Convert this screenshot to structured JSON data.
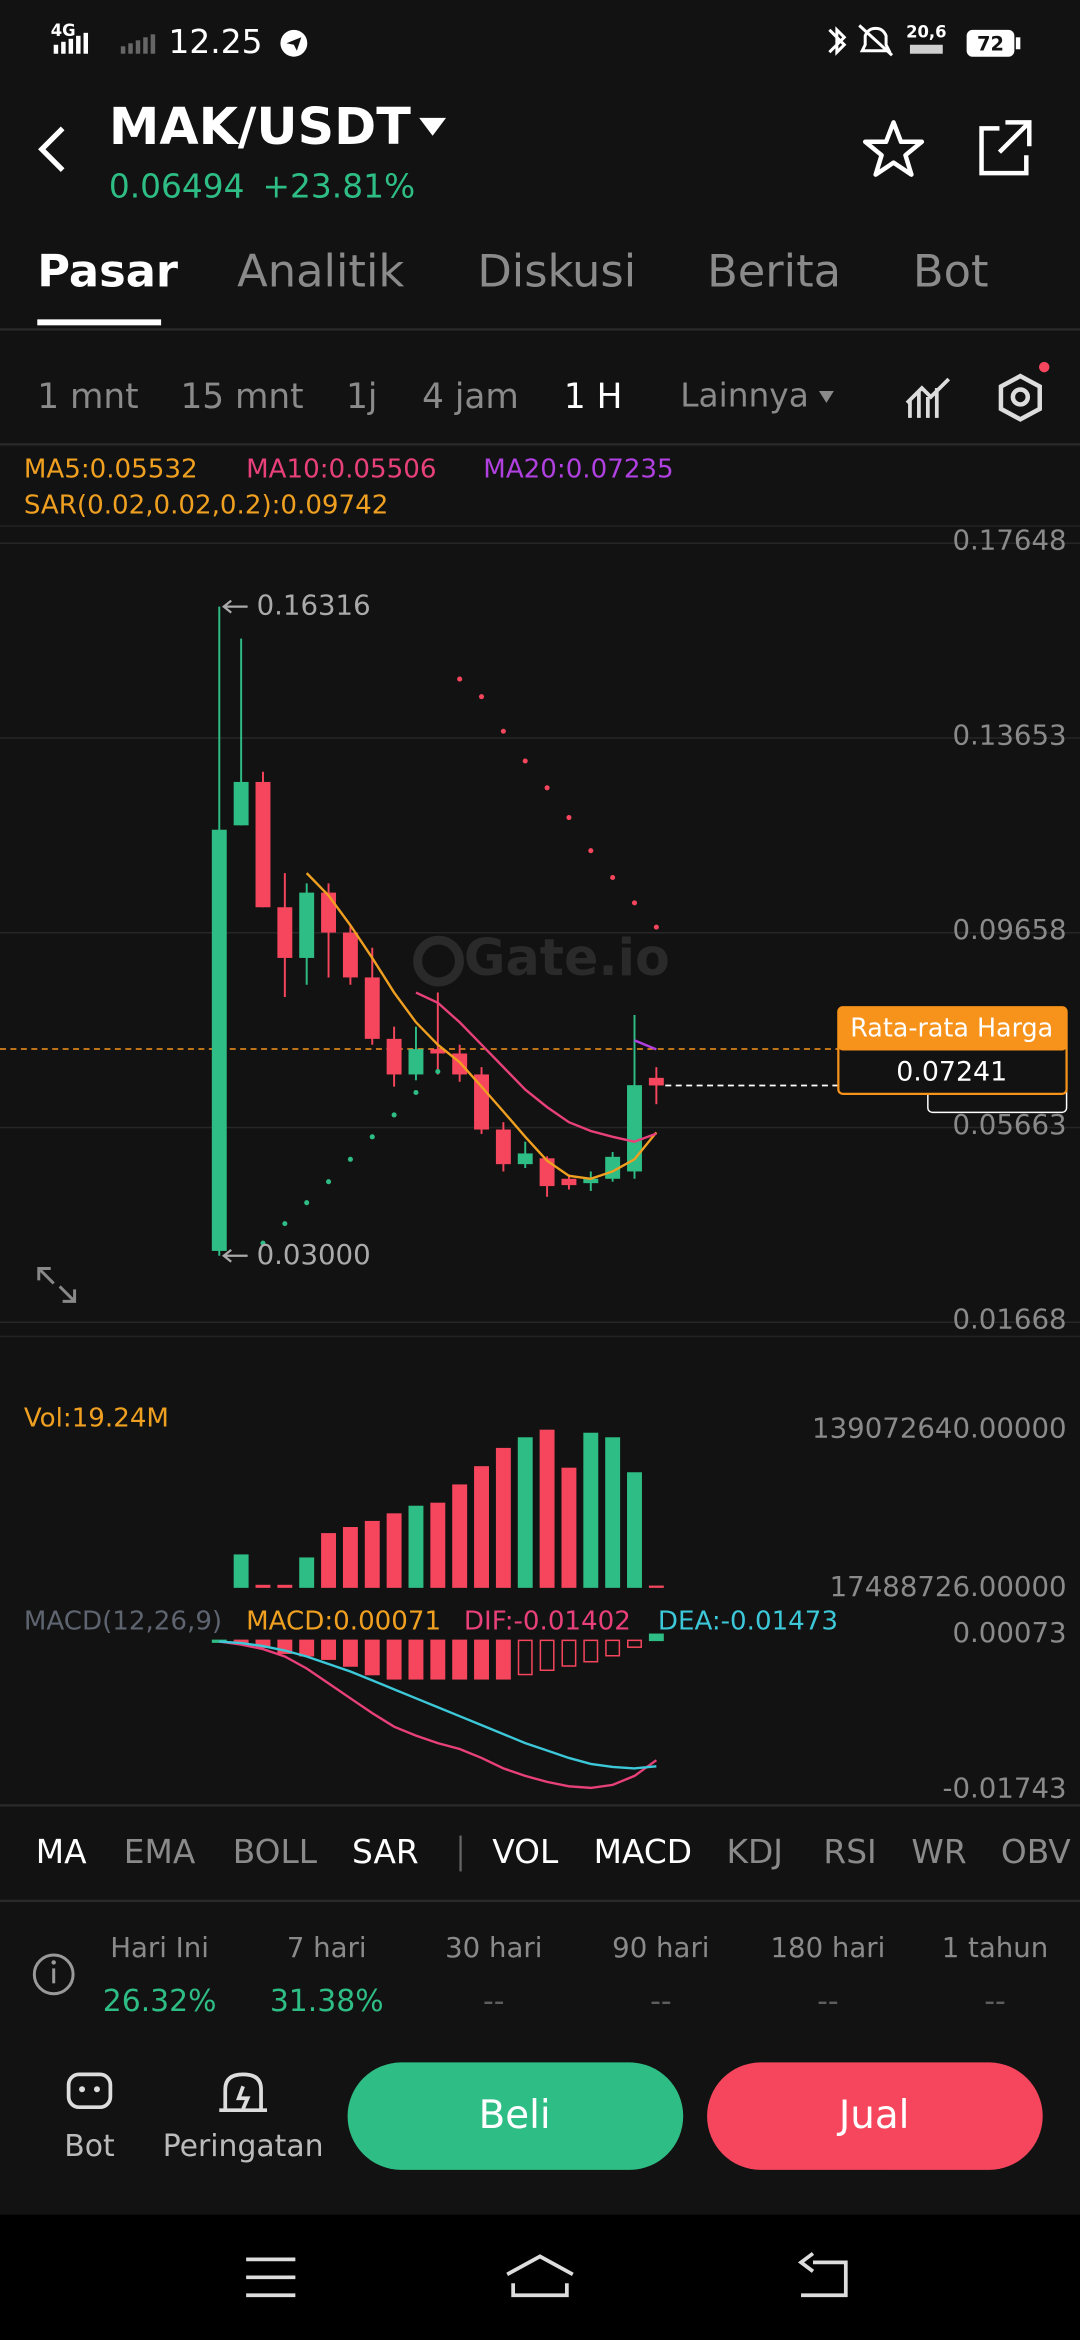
{
  "status": {
    "network": "4G",
    "time": "12.25",
    "speed": "20,6",
    "battery": "72"
  },
  "header": {
    "pair": "MAK/USDT",
    "change": "+23.81%"
  },
  "tabs": {
    "items": [
      "Pasar",
      "Analitik",
      "Diskusi",
      "Berita",
      "Bot"
    ],
    "active": 0
  },
  "intervals": {
    "items": [
      "1 mnt",
      "15 mnt",
      "1j",
      "4 jam",
      "1 H"
    ],
    "active": 4,
    "more": "Lainnya"
  },
  "watermark": "Gate.io",
  "chart_data": [
    {
      "type": "candlestick",
      "open": [
        0.031,
        0.1183,
        0.1272,
        0.1015,
        0.0911,
        0.1045,
        0.0963,
        0.0871,
        0.0745,
        0.0672,
        0.0724,
        0.0715,
        0.0672,
        0.0559,
        0.0488,
        0.05,
        0.0458,
        0.0449,
        0.0458,
        0.0473,
        0.0665
      ],
      "high": [
        0.16316,
        0.1566,
        0.1293,
        0.1085,
        0.1064,
        0.1064,
        0.0978,
        0.0932,
        0.077,
        0.077,
        0.084,
        0.0733,
        0.0687,
        0.0574,
        0.0534,
        0.0504,
        0.0467,
        0.0473,
        0.0513,
        0.0794,
        0.0687
      ],
      "low": [
        0.03,
        0.1183,
        0.1015,
        0.0831,
        0.0856,
        0.0871,
        0.0856,
        0.0733,
        0.0647,
        0.066,
        0.0672,
        0.0657,
        0.055,
        0.0473,
        0.048,
        0.0421,
        0.0436,
        0.0433,
        0.0452,
        0.0458,
        0.0611
      ],
      "close": [
        0.1174,
        0.1272,
        0.1015,
        0.0911,
        0.1045,
        0.0963,
        0.0871,
        0.0745,
        0.0672,
        0.0724,
        0.0715,
        0.0672,
        0.0559,
        0.0488,
        0.051,
        0.0443,
        0.0445,
        0.0458,
        0.0503,
        0.065,
        0.06494
      ],
      "up_color": "#2ebd85",
      "down_color": "#f6465d",
      "series": [
        {
          "name": "MA5:0.05532",
          "color": "#f0a020",
          "values": [
            null,
            null,
            null,
            null,
            0.1085,
            0.1039,
            0.0978,
            0.0911,
            0.084,
            0.0779,
            0.0733,
            0.0697,
            0.0647,
            0.0596,
            0.0544,
            0.0495,
            0.0464,
            0.0458,
            0.0473,
            0.0498,
            0.05532
          ]
        },
        {
          "name": "MA10:0.05506",
          "color": "#e8407a",
          "values": [
            null,
            null,
            null,
            null,
            null,
            null,
            null,
            null,
            null,
            0.084,
            0.0819,
            0.0779,
            0.0733,
            0.0687,
            0.0641,
            0.0605,
            0.0574,
            0.0556,
            0.0544,
            0.0534,
            0.05506
          ]
        },
        {
          "name": "MA20:0.07235",
          "color": "#b040e0",
          "values": [
            null,
            null,
            null,
            null,
            null,
            null,
            null,
            null,
            null,
            null,
            null,
            null,
            null,
            null,
            null,
            null,
            null,
            null,
            null,
            0.0742,
            0.07235
          ]
        }
      ],
      "sar": {
        "name": "SAR(0.02,0.02,0.2):0.09742",
        "color": "#f0a020",
        "values": [
          null,
          null,
          0.0326,
          0.0366,
          0.0409,
          0.0452,
          0.0498,
          0.0544,
          0.0589,
          0.0635,
          0.0678,
          0.1483,
          0.1447,
          0.1376,
          0.1315,
          0.126,
          0.1199,
          0.1131,
          0.1076,
          0.1024,
          0.09742
        ]
      },
      "max_marker": 0.16316,
      "min_marker": {
        "value": 0.03,
        "label": "0.03000"
      },
      "avg_price": {
        "label": "Rata-rata Harga",
        "value": 0.07241,
        "color": "#f7931a"
      },
      "last_price": 0.06494,
      "ylim": [
        0.01668,
        0.17648
      ],
      "yticks": [
        0.17648,
        0.13653,
        0.09658,
        0.05663,
        0.01668
      ],
      "grid": true
    },
    {
      "type": "bar",
      "name": "Vol:19.24M",
      "color": "#f0a020",
      "values": [
        null,
        43200000,
        19830000,
        19830000,
        40870000,
        59580000,
        64250000,
        68930000,
        74770000,
        80620000,
        82960000,
        96990000,
        111020000,
        125050000,
        133230000,
        139070000,
        109850000,
        136730000,
        133230000,
        106340000,
        19240000
      ],
      "ylim": [
        17488726,
        139072640
      ],
      "yticks": [
        {
          "value": 139072640,
          "label": "139072640.00000"
        },
        {
          "value": 17488726,
          "label": "17488726.00000"
        }
      ]
    },
    {
      "type": "macd",
      "title": "MACD(12,26,9)",
      "histogram": {
        "name": "MACD:0.00071",
        "color": "#f0a020",
        "values": [
          0,
          -0.0003,
          -0.0008,
          -0.0015,
          -0.0018,
          -0.0022,
          -0.003,
          -0.004,
          -0.0045,
          -0.0045,
          -0.0045,
          -0.0045,
          -0.0045,
          -0.0045,
          -0.004,
          -0.0035,
          -0.003,
          -0.0025,
          -0.0018,
          -0.0008,
          0.00071
        ]
      },
      "series": [
        {
          "name": "DIF:-0.01402",
          "color": "#e8407a",
          "values": [
            -0.00014,
            -0.00049,
            -0.00102,
            -0.00189,
            -0.00329,
            -0.00503,
            -0.00678,
            -0.00852,
            -0.0101,
            -0.01114,
            -0.01202,
            -0.01271,
            -0.01376,
            -0.01498,
            -0.01586,
            -0.01656,
            -0.01708,
            -0.01726,
            -0.01691,
            -0.01586,
            -0.01402
          ]
        },
        {
          "name": "DEA:-0.01473",
          "color": "#3cc8d8",
          "values": [
            -0.00014,
            -0.00032,
            -0.00067,
            -0.00119,
            -0.00189,
            -0.00276,
            -0.00364,
            -0.00468,
            -0.00573,
            -0.00678,
            -0.00783,
            -0.00887,
            -0.00992,
            -0.01097,
            -0.01202,
            -0.01289,
            -0.01376,
            -0.01446,
            -0.01481,
            -0.01498,
            -0.01473
          ]
        }
      ],
      "ylim": [
        -0.01743,
        0.00073
      ],
      "yticks": [
        0.00073,
        -0.01743
      ]
    }
  ],
  "indicators": {
    "items": [
      "MA",
      "EMA",
      "BOLL",
      "SAR",
      "VOL",
      "MACD",
      "KDJ",
      "RSI",
      "WR",
      "OBV"
    ],
    "active": [
      0,
      3,
      4,
      5
    ]
  },
  "stats": {
    "labels": [
      "Hari Ini",
      "7 hari",
      "30 hari",
      "90 hari",
      "180 hari",
      "1 tahun"
    ],
    "values": [
      "26.32%",
      "31.38%",
      "--",
      "--",
      "--",
      "--"
    ],
    "colors": [
      "#2ebd85",
      "#2ebd85",
      "#5e5e5e",
      "#5e5e5e",
      "#5e5e5e",
      "#5e5e5e"
    ]
  },
  "actions": {
    "bot": "Bot",
    "alert": "Peringatan",
    "buy": "Beli",
    "sell": "Jual"
  }
}
